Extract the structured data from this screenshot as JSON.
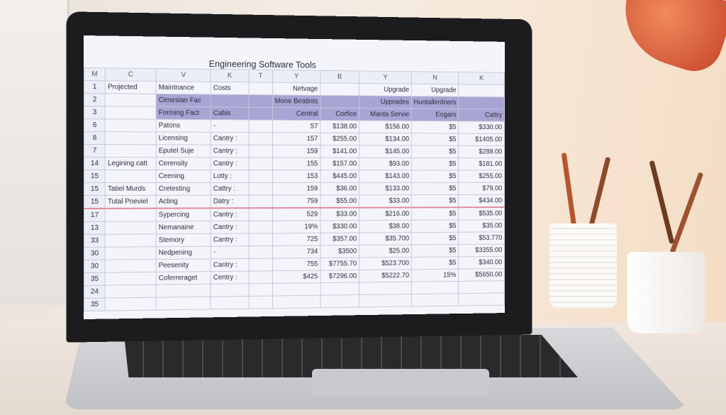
{
  "title": "Engineering Software Tools",
  "column_letters": [
    "M",
    "C",
    "V",
    "K",
    "T",
    "Y",
    "B",
    "Y",
    "N",
    "K"
  ],
  "rows": [
    [
      "1",
      "Projected",
      "Maintnance",
      "Costs",
      null,
      "Netvage",
      null,
      "Upgrade",
      "Upgrade",
      null
    ],
    [
      "2",
      null,
      "Cenesian Fac",
      null,
      null,
      "Mone Beatints",
      null,
      "Upprades",
      "Huntallerdners",
      null
    ],
    [
      "3",
      null,
      "Forming Fact",
      "Cabis",
      null,
      "Central",
      "Corfice",
      "Manta Servie",
      "Eogars",
      "Cattry"
    ],
    [
      "6",
      null,
      "Patons",
      "-",
      null,
      "57",
      "$138.00",
      "$156.00",
      "$5",
      "$330.00"
    ],
    [
      "8",
      null,
      "Licensing",
      "Cantry :",
      null,
      "157",
      "$255.00",
      "$134.00",
      "$5",
      "$1405.00"
    ],
    [
      "7",
      null,
      "Eputel Suje",
      "Cantry :",
      null,
      "159",
      "$141.00",
      "$145.00",
      "$5",
      "$288.00"
    ],
    [
      "14",
      "Legining catt",
      "Cerensity",
      "Cantry :",
      null,
      "155",
      "$157.00",
      "$93.00",
      "$5",
      "$181.00"
    ],
    [
      "15",
      null,
      "Ceening",
      "Lotty :",
      null,
      "153",
      "$445.00",
      "$143.00",
      "$5",
      "$255.00"
    ],
    [
      "15",
      "Tatiel Murds",
      "Cretesting",
      "Cattry :",
      null,
      "159",
      "$36.00",
      "$133.00",
      "$5",
      "$79.00"
    ],
    [
      "15",
      "Tutal Pneviel",
      "Acting",
      "Datry :",
      null,
      "759",
      "$55.00",
      "$33.00",
      "$5",
      "$434.00"
    ],
    [
      "17",
      null,
      "Sypercing",
      "Cantry :",
      null,
      "529",
      "$33.00",
      "$216.00",
      "$5",
      "$535.00"
    ],
    [
      "13",
      null,
      "Nemanaine",
      "Cantry :",
      null,
      "19%",
      "$330.00",
      "$38.00",
      "$5",
      "$35.00"
    ],
    [
      "33",
      null,
      "Stemory",
      "Cantry :",
      null,
      "725",
      "$357.00",
      "$35.700",
      "$5",
      "$53.770"
    ],
    [
      "30",
      null,
      "Nedpening",
      "-",
      null,
      "734",
      "$3500",
      "$25.00",
      "$5",
      "$3355.00"
    ],
    [
      "30",
      null,
      "Peesenity",
      "Cantry :",
      null,
      "755",
      "$7755.70",
      "$523.700",
      "$5",
      "$340.00"
    ],
    [
      "35",
      null,
      "Coferreraget",
      "Centry :",
      null,
      "$425",
      "$7296.00",
      "$5222.70",
      "15%",
      "$5650.00"
    ],
    [
      "24",
      null,
      null,
      null,
      null,
      null,
      null,
      null,
      null,
      null
    ],
    [
      "35",
      null,
      null,
      null,
      null,
      null,
      null,
      null,
      null,
      null
    ]
  ]
}
